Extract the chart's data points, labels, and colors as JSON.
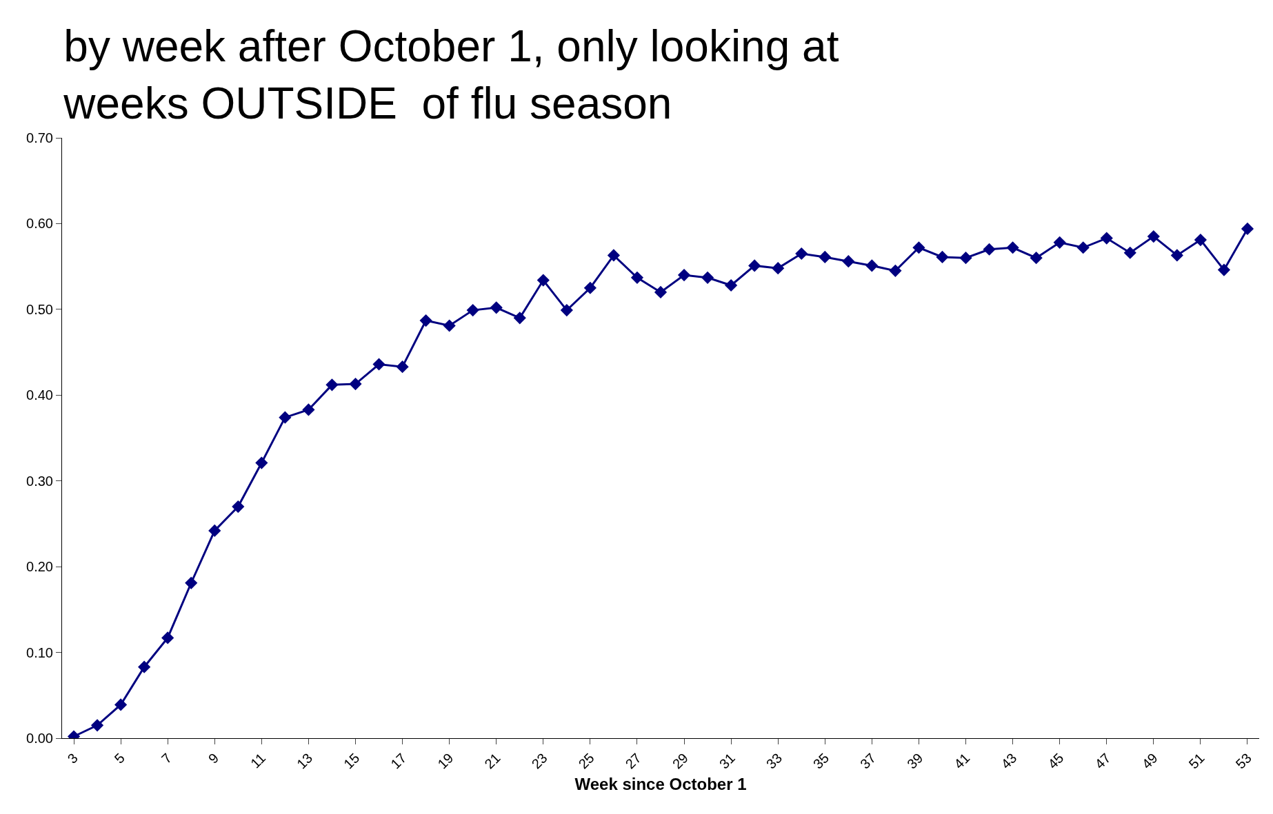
{
  "chart_data": {
    "type": "line",
    "title": "by week after October 1, only looking at\nweeks OUTSIDE  of flu season",
    "xlabel": "Week since October 1",
    "x": [
      3,
      4,
      5,
      6,
      7,
      8,
      9,
      10,
      11,
      12,
      13,
      14,
      15,
      16,
      17,
      18,
      19,
      20,
      21,
      22,
      23,
      24,
      25,
      26,
      27,
      28,
      29,
      30,
      31,
      32,
      33,
      34,
      35,
      36,
      37,
      38,
      39,
      40,
      41,
      42,
      43,
      44,
      45,
      46,
      47,
      48,
      49,
      50,
      51,
      52,
      53
    ],
    "series": [
      {
        "color": "#000080",
        "values": [
          0.002,
          0.015,
          0.039,
          0.083,
          0.117,
          0.181,
          0.242,
          0.27,
          0.321,
          0.374,
          0.383,
          0.412,
          0.413,
          0.436,
          0.433,
          0.487,
          0.481,
          0.499,
          0.502,
          0.49,
          0.534,
          0.499,
          0.525,
          0.563,
          0.537,
          0.52,
          0.54,
          0.537,
          0.528,
          0.551,
          0.548,
          0.565,
          0.561,
          0.556,
          0.551,
          0.545,
          0.572,
          0.561,
          0.56,
          0.57,
          0.572,
          0.56,
          0.578,
          0.572,
          0.583,
          0.566,
          0.585,
          0.563,
          0.581,
          0.546,
          0.594
        ]
      }
    ],
    "xlim": [
      2.5,
      53.5
    ],
    "xticks": [
      3,
      5,
      7,
      9,
      11,
      13,
      15,
      17,
      19,
      21,
      23,
      25,
      27,
      29,
      31,
      33,
      35,
      37,
      39,
      41,
      43,
      45,
      47,
      49,
      51,
      53
    ],
    "ylim": [
      0,
      0.7
    ],
    "yticks": [
      {
        "value": 0,
        "label": "0.00"
      },
      {
        "value": 0.1,
        "label": "0.10"
      },
      {
        "value": 0.2,
        "label": "0.20"
      },
      {
        "value": 0.3,
        "label": "0.30"
      },
      {
        "value": 0.4,
        "label": "0.40"
      },
      {
        "value": 0.5,
        "label": "0.50"
      },
      {
        "value": 0.6,
        "label": "0.60"
      },
      {
        "value": 0.7,
        "label": "0.70"
      }
    ],
    "grid": false,
    "marker": "diamond",
    "line_style": "solid"
  }
}
